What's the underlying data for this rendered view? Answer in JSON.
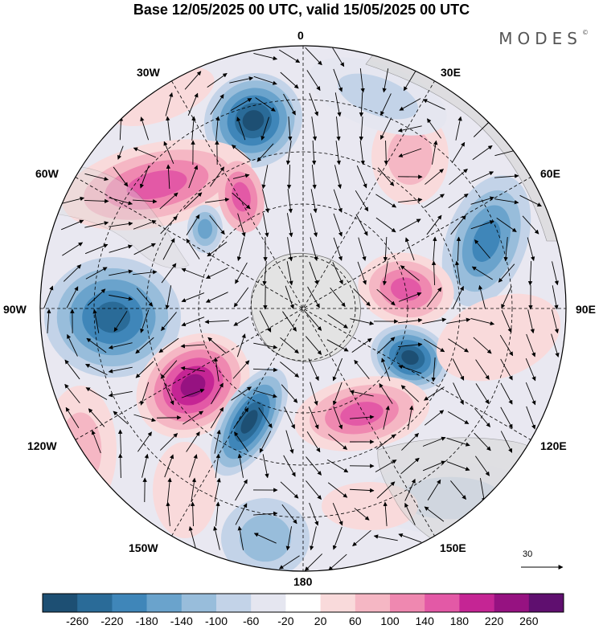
{
  "title": "Base 12/05/2025 00 UTC, valid 15/05/2025 00 UTC",
  "brand": "MODES",
  "brand_mark": "©",
  "longitude_labels": {
    "top": "0",
    "top_left": "30W",
    "top_right": "30E",
    "upper_left": "60W",
    "upper_right": "60E",
    "left": "90W",
    "right": "90E",
    "lower_left": "120W",
    "lower_right": "120E",
    "bottom_left": "150W",
    "bottom_right": "150E",
    "bottom": "180"
  },
  "vector_reference": "30",
  "colorbar": {
    "ticks": [
      "-260",
      "-220",
      "-180",
      "-140",
      "-100",
      "-60",
      "-20",
      "20",
      "60",
      "100",
      "140",
      "180",
      "220",
      "260"
    ],
    "colors": [
      "#1d4f73",
      "#2a6b98",
      "#3f86b9",
      "#6aa3cc",
      "#98bddb",
      "#c3d3e8",
      "#e5e6f0",
      "#ffffff",
      "#f9dadb",
      "#f5b7c4",
      "#ef88b0",
      "#e359a6",
      "#c52594",
      "#961281",
      "#5f0f6f"
    ]
  },
  "colors": {
    "land": "#d9d9d9",
    "antarctica": "#e3e3e3",
    "coastline": "#707070",
    "grid": "#000000"
  }
}
